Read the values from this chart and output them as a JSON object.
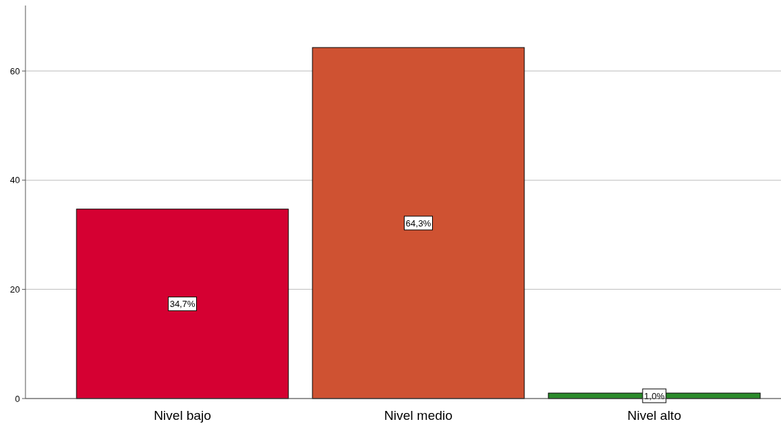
{
  "chart_data": {
    "type": "bar",
    "categories": [
      "Nivel bajo",
      "Nivel medio",
      "Nivel alto"
    ],
    "values": [
      34.7,
      64.3,
      1.0
    ],
    "colors": [
      "#d50032",
      "#cf5232",
      "#2a8a2a"
    ],
    "value_labels": [
      "34,7%",
      "64,3%",
      "1,0%"
    ],
    "ylim": [
      0,
      72
    ],
    "yticks": [
      0,
      20,
      40,
      60
    ],
    "grid": "y"
  }
}
